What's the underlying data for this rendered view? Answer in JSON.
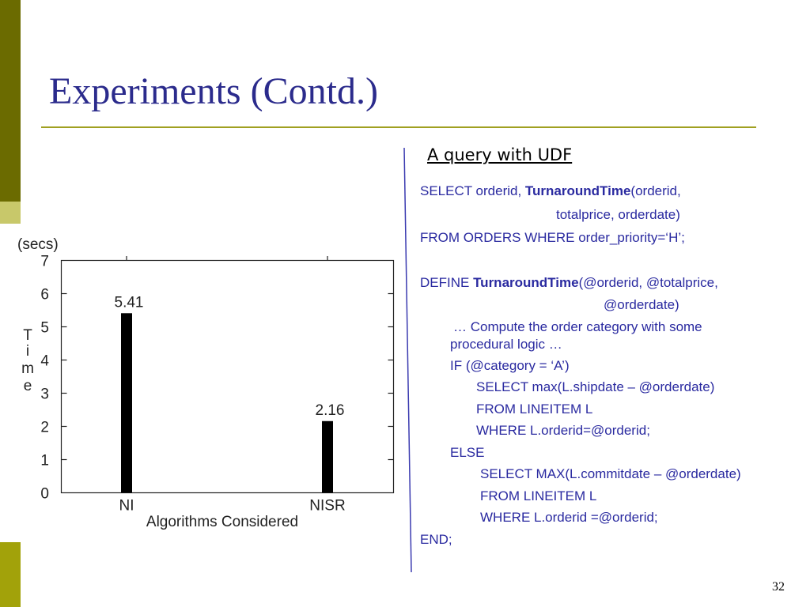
{
  "slide": {
    "title": "Experiments (Contd.)",
    "subtitle": "A query with UDF",
    "page_number": "32"
  },
  "colors": {
    "title": "#2b2b8c",
    "code": "#2a2aa0",
    "accent_dark": "#6b6b00",
    "accent_light": "#c8c86a",
    "rule": "#a0a020"
  },
  "query": {
    "l1_pre": "SELECT orderid, ",
    "l1_bold": "TurnaroundTime",
    "l1_post": "(orderid,",
    "l2": "totalprice, orderdate)",
    "l3": "FROM ORDERS WHERE order_priority=‘H’;",
    "l4_pre": "DEFINE ",
    "l4_bold": "TurnaroundTime",
    "l4_post": "(@orderid, @totalprice,",
    "l5": "@orderdate)",
    "l6": "… Compute the order category with some",
    "l7": "procedural logic …",
    "l8": "IF (@category = ‘A’)",
    "l9": "SELECT max(L.shipdate – @orderdate)",
    "l10": "FROM LINEITEM L",
    "l11": "WHERE L.orderid=@orderid;",
    "l12": "ELSE",
    "l13": "SELECT MAX(L.commitdate – @orderdate)",
    "l14": "FROM LINEITEM L",
    "l15": "WHERE L.orderid =@orderid;",
    "l16": "END;"
  },
  "chart_data": {
    "type": "bar",
    "categories": [
      "NI",
      "NISR"
    ],
    "values": [
      5.41,
      2.16
    ],
    "value_labels": [
      "5.41",
      "2.16"
    ],
    "unit_label": "(secs)",
    "ylabel": "Time",
    "ylabel_letters": [
      "T",
      "i",
      "m",
      "e"
    ],
    "xlabel": "Algorithms Considered",
    "yticks": [
      "0",
      "1",
      "2",
      "3",
      "4",
      "5",
      "6",
      "7"
    ],
    "ylim": [
      0,
      7
    ],
    "grid": false,
    "bar_color": "#000000"
  }
}
